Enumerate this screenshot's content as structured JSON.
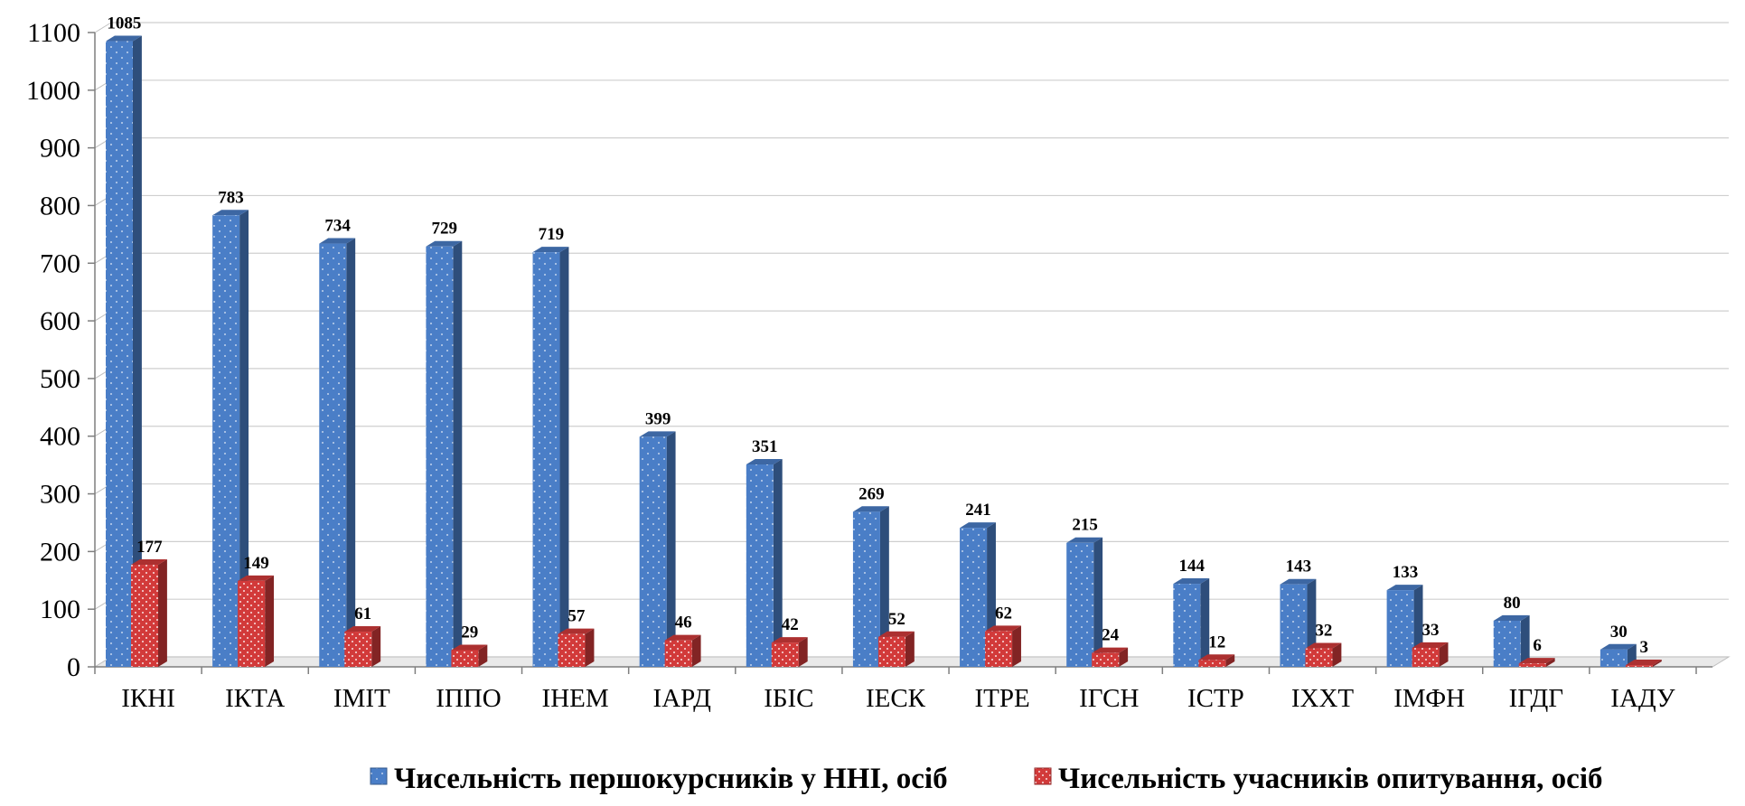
{
  "chart_data": {
    "type": "bar",
    "style": "3d-clustered-column",
    "categories": [
      "ІКНІ",
      "ІКТА",
      "ІМІТ",
      "ІППО",
      "ІНЕМ",
      "ІАРД",
      "ІБІС",
      "ІЕСК",
      "ІТРЕ",
      "ІГСН",
      "ІСТР",
      "ІХХТ",
      "ІМФН",
      "ІГДГ",
      "ІАДУ"
    ],
    "series": [
      {
        "name": "Чисельність першокурсників у ННІ, осіб",
        "color": "#4A7EC7",
        "values": [
          1085,
          783,
          734,
          729,
          719,
          399,
          351,
          269,
          241,
          215,
          144,
          143,
          133,
          80,
          30
        ]
      },
      {
        "name": "Чисельність учасників опитування, осіб",
        "color": "#D23A3A",
        "values": [
          177,
          149,
          61,
          29,
          57,
          46,
          42,
          52,
          62,
          24,
          12,
          32,
          33,
          6,
          3
        ]
      }
    ],
    "ylim": [
      0,
      1100
    ],
    "yticks": [
      "0",
      "100",
      "200",
      "300",
      "400",
      "500",
      "600",
      "700",
      "800",
      "900",
      "1000",
      "1100"
    ],
    "grid": true,
    "legend": "bottom"
  }
}
